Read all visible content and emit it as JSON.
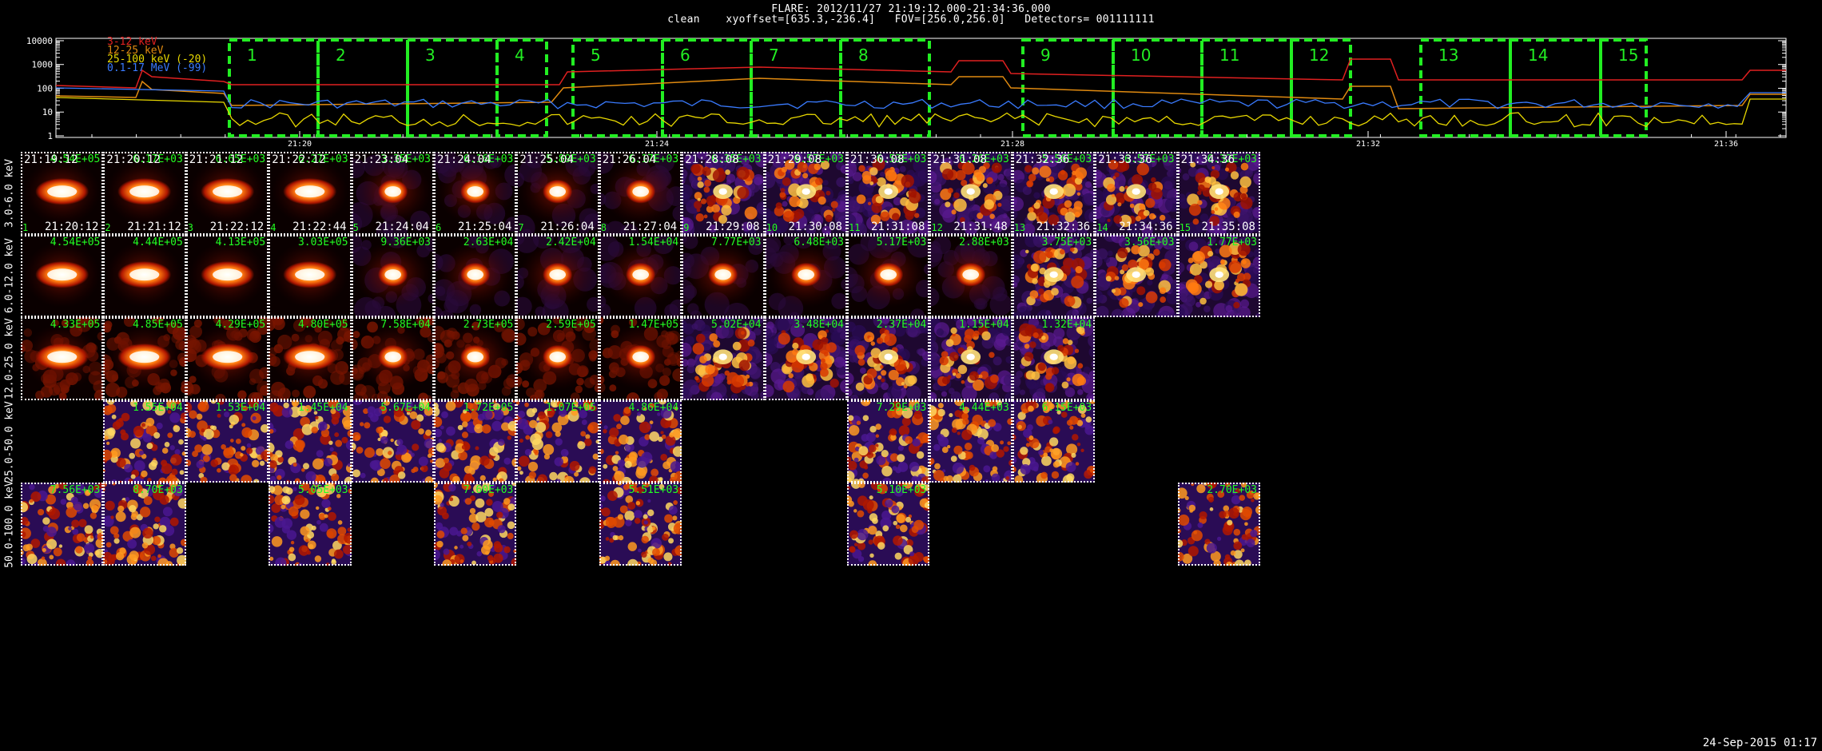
{
  "header": {
    "line1": "FLARE: 2012/11/27 21:19:12.000-21:34:36.000",
    "line2": "clean    xyoffset=[635.3,-236.4]   FOV=[256.0,256.0]   Detectors= 001111111"
  },
  "lightcurve": {
    "y_ticks": [
      "10000",
      "1000",
      "100",
      "10",
      "1"
    ],
    "y_log_range": [
      1,
      10000
    ],
    "x_ticks": [
      "21:20",
      "21:24",
      "21:28",
      "21:32",
      "21:36"
    ],
    "legend": [
      {
        "label": "3-12 keV",
        "color": "#e02020"
      },
      {
        "label": "12-25 keV",
        "color": "#e08a10"
      },
      {
        "label": "25-100 keV (-20)",
        "color": "#e8d800"
      },
      {
        "label": "0.1-17 MeV (-99)",
        "color": "#3a7bff"
      }
    ],
    "intervals": [
      "1",
      "2",
      "3",
      "4",
      "5",
      "6",
      "7",
      "8",
      "9",
      "10",
      "11",
      "12",
      "13",
      "14",
      "15"
    ],
    "interval_color": "#22ee22"
  },
  "rows": [
    {
      "label": "3.0-6.0 keV"
    },
    {
      "label": "6.0-12.0 keV"
    },
    {
      "label": "12.0-25.0 keV"
    },
    {
      "label": "25.0-50.0 keV"
    },
    {
      "label": "50.0-100.0 keV"
    }
  ],
  "tile_times": {
    "start": [
      "21:19:12",
      "21:20:12",
      "21:21:12",
      "21:22:12",
      "21:23:04",
      "21:24:04",
      "21:25:04",
      "21:26:04",
      "21:28:08",
      "21:29:08",
      "21:30:08",
      "21:31:08",
      "21:32:36",
      "21:33:36",
      "21:34:36"
    ],
    "end": [
      "21:20:12",
      "21:21:12",
      "21:22:12",
      "21:22:44",
      "21:24:04",
      "21:25:04",
      "21:26:04",
      "21:27:04",
      "21:29:08",
      "21:30:08",
      "21:31:08",
      "21:31:48",
      "21:32:36",
      "21:34:36",
      "21:35:08"
    ]
  },
  "peaks": {
    "row0": [
      "4.54E+05",
      "6.17E+03",
      "6.65E+03",
      "6.27E+03",
      "3.35E+03",
      "6.16E+03",
      "5.89E+03",
      "6.17E+03",
      "6.35E+03",
      "6.57E+03",
      "6.53E+03",
      "6.26E+03",
      "5.56E+03",
      "6.57E+03",
      "6.32E+03"
    ],
    "row1": [
      "4.54E+05",
      "4.44E+05",
      "4.13E+05",
      "3.03E+05",
      "9.36E+03",
      "2.63E+04",
      "2.42E+04",
      "1.54E+04",
      "7.77E+03",
      "6.48E+03",
      "5.17E+03",
      "2.88E+03",
      "3.75E+03",
      "3.56E+03",
      "1.77E+03"
    ],
    "row2": [
      "4.33E+05",
      "4.85E+05",
      "4.29E+05",
      "4.80E+05",
      "7.58E+04",
      "2.73E+05",
      "2.59E+05",
      "1.47E+05",
      "5.02E+04",
      "3.48E+04",
      "2.37E+04",
      "1.15E+04",
      "1.32E+04"
    ],
    "row3": [
      "1.55E+04",
      "1.53E+04",
      "1.45E+04",
      "5.67E+04",
      "1.72E+05",
      "1.07E+05",
      "4.86E+04",
      "",
      "",
      "7.29E+03",
      "4.44E+03",
      "6.15E+03"
    ],
    "row4": [
      "7.56E+03",
      "8.70E+03",
      "5.05E+03",
      "7.60E+03",
      "5.51E+03",
      "5.10E+03",
      "2.70E+03"
    ]
  },
  "footer": {
    "stamp": "24-Sep-2015 01:17"
  }
}
